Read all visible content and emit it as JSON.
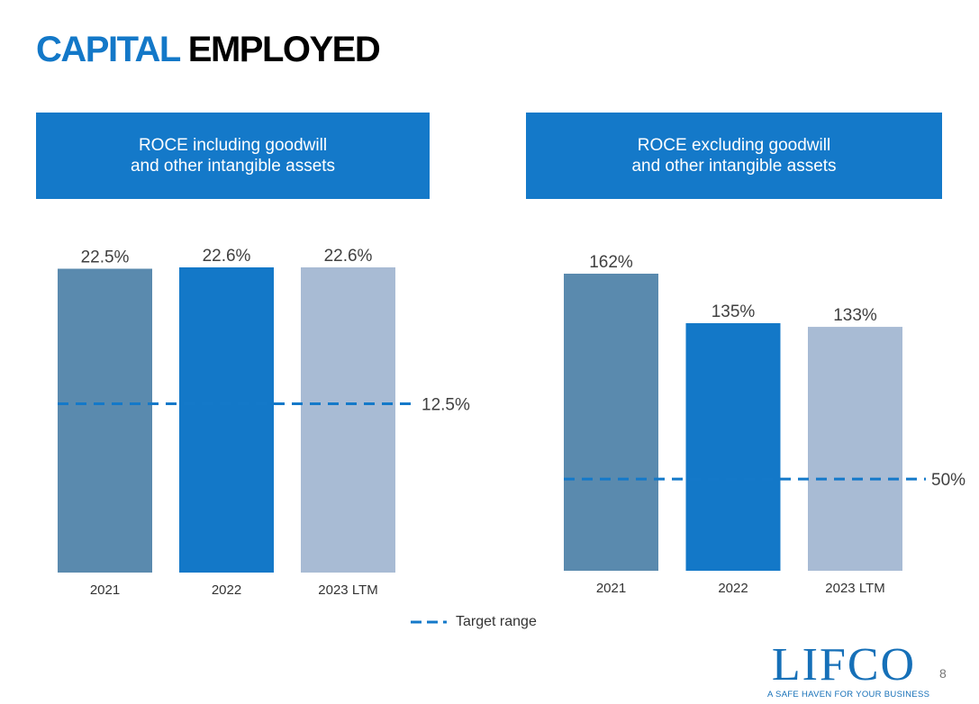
{
  "title": {
    "part1": "CAPITAL",
    "part2": "EMPLOYED"
  },
  "colors": {
    "accent": "#1479c9",
    "bar_2021": "#5a8aae",
    "bar_2022": "#1378c8",
    "bar_2023": "#a8bbd4",
    "target_line": "#1479c9"
  },
  "chart_data": [
    {
      "type": "bar",
      "title_lines": [
        "ROCE including goodwill",
        "and other intangible assets"
      ],
      "categories": [
        "2021",
        "2022",
        "2023 LTM"
      ],
      "values": [
        22.5,
        22.6,
        22.6
      ],
      "value_labels": [
        "22.5%",
        "22.6%",
        "22.6%"
      ],
      "target": 12.5,
      "target_label": "12.5%",
      "ylim": [
        0,
        30
      ],
      "grid": false
    },
    {
      "type": "bar",
      "title_lines": [
        "ROCE excluding goodwill",
        "and other intangible assets"
      ],
      "categories": [
        "2021",
        "2022",
        "2023 LTM"
      ],
      "values": [
        162,
        135,
        133
      ],
      "value_labels": [
        "162%",
        "135%",
        "133%"
      ],
      "target": 50,
      "target_label": "50%",
      "ylim": [
        0,
        162
      ],
      "grid": false
    }
  ],
  "legend": {
    "label": "Target range"
  },
  "logo": {
    "word": "LIFCO",
    "tagline": "A SAFE HAVEN FOR YOUR BUSINESS"
  },
  "page_number": "8"
}
